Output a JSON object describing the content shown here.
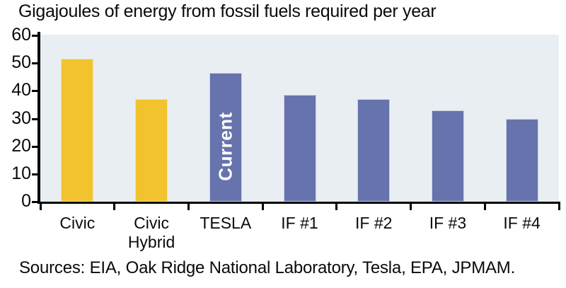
{
  "footer": {
    "sources": "Sources: EIA, Oak Ridge National Laboratory, Tesla, EPA, JPMAM."
  },
  "chart_data": {
    "type": "bar",
    "title": "Gigajoules of energy from fossil fuels required per year",
    "categories": [
      "Civic",
      "Civic\nHybrid",
      "TESLA",
      "IF #1",
      "IF #2",
      "IF #3",
      "IF #4"
    ],
    "values": [
      51.5,
      37,
      46.5,
      38.5,
      37,
      33,
      30
    ],
    "bar_colors": [
      "#F2C32D",
      "#F2C32D",
      "#6673AD",
      "#6673AD",
      "#6673AD",
      "#6673AD",
      "#6673AD"
    ],
    "annotation": {
      "category_index": 2,
      "text": "Current",
      "color": "#FFFFFF"
    },
    "xlabel": "",
    "ylabel": "",
    "ylim": [
      0,
      60
    ],
    "yticks": [
      0,
      10,
      20,
      30,
      40,
      50,
      60
    ],
    "grid": false,
    "legend": "none",
    "plot_background": "#E9EEF2",
    "axis_color": "#000000",
    "yellow_series_note": "Civic and Civic Hybrid bars are yellow; TESLA and IF bars are blue-purple"
  }
}
